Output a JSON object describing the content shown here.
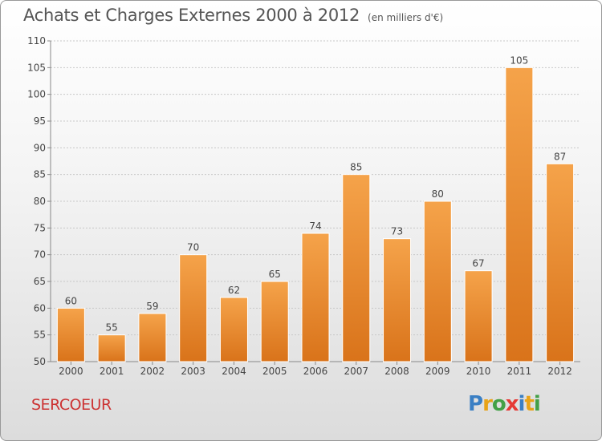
{
  "title": "Achats et Charges Externes 2000 à 2012",
  "subtitle": "(en milliers d'€)",
  "town": "SERCOEUR",
  "logo": {
    "text": "Proxiti",
    "letters": [
      "P",
      "r",
      "o",
      "x",
      "i",
      "t",
      "i"
    ],
    "colors": [
      "#3a7fc4",
      "#e8a317",
      "#43a047",
      "#e53935",
      "#3a7fc4",
      "#e8a317",
      "#43a047"
    ]
  },
  "colors": {
    "bar_top": "#f5a34a",
    "bar_bottom": "#d9731a",
    "axis": "#888888",
    "grid": "#c8c8c8",
    "text": "#444444",
    "town": "#cc3333"
  },
  "chart_data": {
    "type": "bar",
    "categories": [
      "2000",
      "2001",
      "2002",
      "2003",
      "2004",
      "2005",
      "2006",
      "2007",
      "2008",
      "2009",
      "2010",
      "2011",
      "2012"
    ],
    "values": [
      60,
      55,
      59,
      70,
      62,
      65,
      74,
      85,
      73,
      80,
      67,
      105,
      87
    ],
    "ylim": [
      50,
      110
    ],
    "yticks": [
      50,
      55,
      60,
      65,
      70,
      75,
      80,
      85,
      90,
      95,
      100,
      105,
      110
    ],
    "grid": true,
    "data_labels": true
  }
}
